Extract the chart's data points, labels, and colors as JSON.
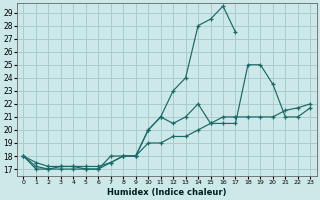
{
  "xlabel": "Humidex (Indice chaleur)",
  "xlim": [
    -0.5,
    23.5
  ],
  "ylim": [
    16.5,
    29.7
  ],
  "xticks": [
    0,
    1,
    2,
    3,
    4,
    5,
    6,
    7,
    8,
    9,
    10,
    11,
    12,
    13,
    14,
    15,
    16,
    17,
    18,
    19,
    20,
    21,
    22,
    23
  ],
  "yticks": [
    17,
    18,
    19,
    20,
    21,
    22,
    23,
    24,
    25,
    26,
    27,
    28,
    29
  ],
  "bg_color": "#cde8e8",
  "grid_color": "#aacccc",
  "line_color": "#1a6868",
  "curves": [
    {
      "x": [
        0,
        1,
        2,
        3,
        4,
        5,
        6,
        7,
        8,
        9,
        10,
        11,
        12,
        13,
        14,
        15,
        16,
        17,
        18,
        19,
        20,
        21,
        22,
        23
      ],
      "y": [
        18,
        17,
        17,
        17,
        17,
        17,
        17,
        18,
        18,
        18,
        20,
        21,
        23,
        24,
        28,
        28.5,
        29.5,
        27.5,
        null,
        null,
        null,
        null,
        null,
        null
      ]
    },
    {
      "x": [
        0,
        1,
        2,
        3,
        4,
        5,
        6,
        7,
        8,
        9,
        10,
        11,
        12,
        13,
        14,
        15,
        16,
        17,
        18,
        19,
        20,
        21,
        22,
        23
      ],
      "y": [
        18,
        17.2,
        17,
        17.2,
        17.2,
        17,
        17,
        17.5,
        18,
        18,
        20,
        21,
        20.5,
        21,
        22,
        20.5,
        20.5,
        20.5,
        25,
        25,
        23.5,
        21,
        21,
        21.7
      ]
    },
    {
      "x": [
        0,
        1,
        2,
        3,
        4,
        5,
        6,
        7,
        8,
        9,
        10,
        11,
        12,
        13,
        14,
        15,
        16,
        17,
        18,
        19,
        20,
        21,
        22,
        23
      ],
      "y": [
        18,
        17.5,
        17.2,
        17.2,
        17.2,
        17.2,
        17.2,
        17.5,
        18,
        18,
        19,
        19,
        19.5,
        19.5,
        20,
        20.5,
        21,
        21,
        21,
        21,
        21,
        21.5,
        21.7,
        22
      ]
    }
  ]
}
